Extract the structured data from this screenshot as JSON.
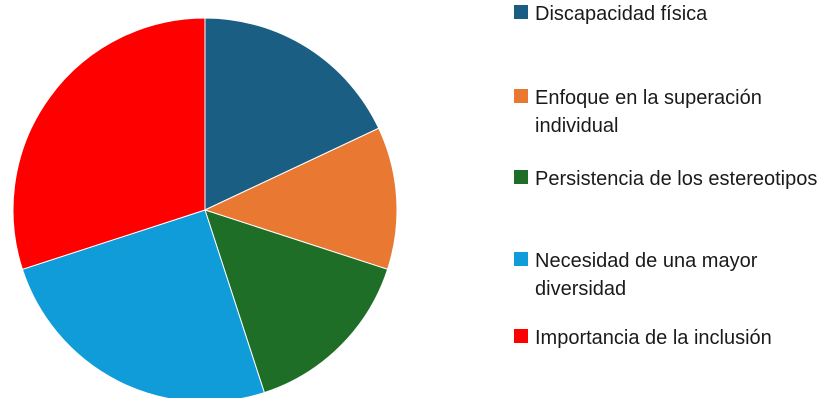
{
  "chart_data": {
    "type": "pie",
    "title": "",
    "legend_position": "right",
    "slices": [
      {
        "label": "Discapacidad física",
        "value": 18,
        "color": "#1a5e84"
      },
      {
        "label": "Enfoque en la superación individual",
        "value": 12,
        "color": "#e97833"
      },
      {
        "label": "Persistencia de los estereotipos",
        "value": 15,
        "color": "#1e6e27"
      },
      {
        "label": "Necesidad de una mayor diversidad",
        "value": 25,
        "color": "#0f9cd8"
      },
      {
        "label": "Importancia de la inclusión",
        "value": 30,
        "color": "#ff0000"
      }
    ]
  }
}
